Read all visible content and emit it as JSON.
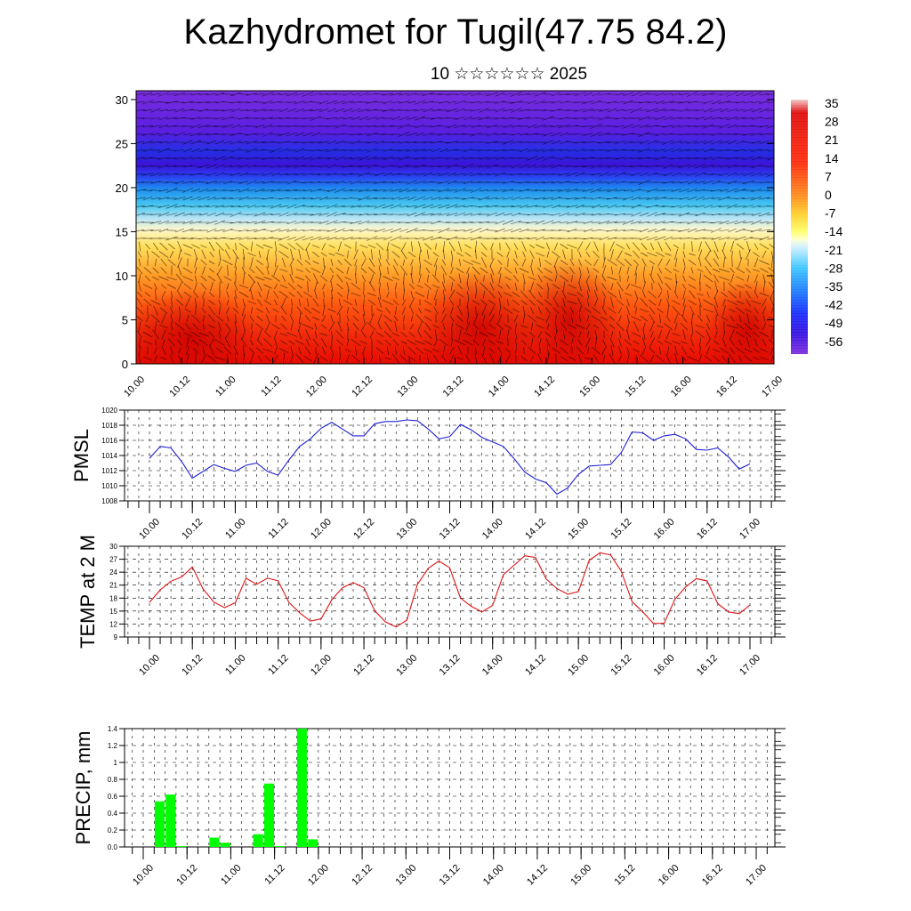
{
  "title": "Kazhydromet for Tugil(47.75 84.2)",
  "subtitle": "10 ☆☆☆☆☆☆ 2025",
  "time_ticks": [
    "10.00",
    "10.12",
    "11.00",
    "11.12",
    "12.00",
    "12.12",
    "13.00",
    "13.12",
    "14.00",
    "14.12",
    "15.00",
    "15.12",
    "16.00",
    "16.12",
    "17.00"
  ],
  "chart_data": [
    {
      "type": "heatmap",
      "name": "temperature-cross-section",
      "xlim": [
        0,
        168
      ],
      "ylim": [
        0,
        31
      ],
      "yticks": [
        0,
        5,
        10,
        15,
        20,
        25,
        30
      ],
      "colorbar_labels": [
        "35",
        "28",
        "21",
        "14",
        "7",
        "0",
        "-7",
        "-14",
        "-21",
        "-28",
        "-35",
        "-42",
        "-49",
        "-56"
      ],
      "value_range": [
        -63,
        42
      ],
      "overlay": "wind vectors"
    },
    {
      "type": "line",
      "ylabel": "PMSL",
      "color": "#1f1fd6",
      "ylim": [
        1008,
        1020
      ],
      "yticks": [
        1008,
        1010,
        1012,
        1014,
        1016,
        1018,
        1020
      ],
      "grid": true,
      "values": [
        1013.6,
        1015.2,
        1015.0,
        1013.2,
        1011.0,
        1011.9,
        1012.8,
        1012.3,
        1011.9,
        1012.7,
        1013.0,
        1011.9,
        1011.4,
        1013.4,
        1015.2,
        1016.2,
        1017.6,
        1018.4,
        1017.5,
        1016.6,
        1016.6,
        1018.2,
        1018.5,
        1018.5,
        1018.7,
        1018.6,
        1017.5,
        1016.2,
        1016.5,
        1018.1,
        1017.4,
        1016.4,
        1015.8,
        1015.2,
        1013.6,
        1011.8,
        1010.9,
        1010.4,
        1008.9,
        1009.7,
        1011.5,
        1012.6,
        1012.7,
        1012.8,
        1014.4,
        1017.1,
        1017.0,
        1016.0,
        1016.6,
        1016.8,
        1016.2,
        1014.8,
        1014.7,
        1015.0,
        1013.8,
        1012.2,
        1012.9
      ]
    },
    {
      "type": "line",
      "ylabel": "TEMP at 2 M",
      "color": "#e01414",
      "ylim": [
        9,
        30
      ],
      "yticks": [
        9,
        12,
        15,
        18,
        21,
        24,
        27,
        30
      ],
      "grid": true,
      "values": [
        17.0,
        19.9,
        21.9,
        22.9,
        25.2,
        20.1,
        17.1,
        15.8,
        16.9,
        22.6,
        21.2,
        22.6,
        22.0,
        17.0,
        14.6,
        12.7,
        13.2,
        17.6,
        20.4,
        21.6,
        20.4,
        15.1,
        12.5,
        11.3,
        12.9,
        21.2,
        24.9,
        26.6,
        25.0,
        18.0,
        16.1,
        14.8,
        16.3,
        23.4,
        25.6,
        27.8,
        27.4,
        22.4,
        20.2,
        18.9,
        19.5,
        26.7,
        28.5,
        28.0,
        24.2,
        17.2,
        14.8,
        12.1,
        12.2,
        17.7,
        20.6,
        22.5,
        22.0,
        16.7,
        14.8,
        14.4,
        16.4
      ]
    },
    {
      "type": "bar",
      "ylabel": "PRECIP, mm",
      "color": "#00ff00",
      "ylim": [
        0,
        1.4
      ],
      "yticks": [
        "0.0",
        "0.2",
        "0.4",
        "0.6",
        "0.8",
        "1",
        "1.2",
        "1.4"
      ],
      "grid": true,
      "values": [
        0,
        0.54,
        0.62,
        0.01,
        0,
        0,
        0.11,
        0.05,
        0,
        0,
        0.15,
        0.75,
        0.01,
        0,
        1.4,
        0.09,
        0,
        0,
        0,
        0,
        0,
        0,
        0,
        0,
        0,
        0,
        0,
        0,
        0,
        0,
        0,
        0,
        0,
        0,
        0,
        0,
        0,
        0,
        0,
        0,
        0,
        0,
        0,
        0,
        0,
        0,
        0,
        0,
        0,
        0,
        0,
        0,
        0,
        0,
        0,
        0
      ]
    }
  ]
}
